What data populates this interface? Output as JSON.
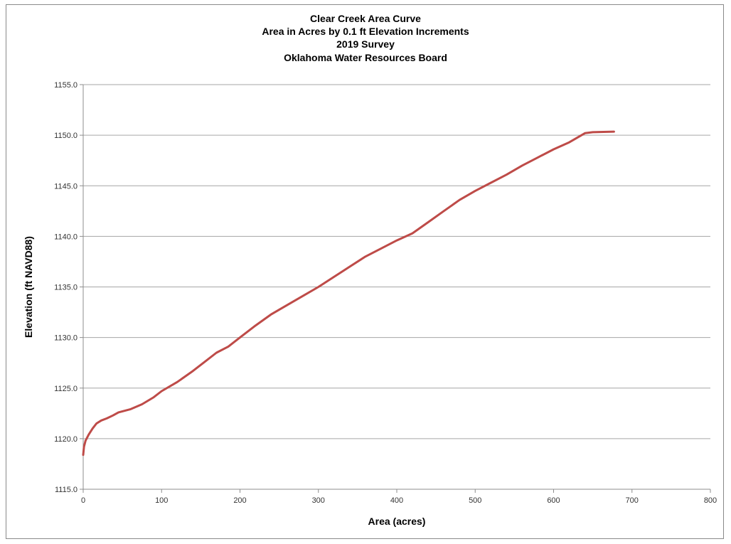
{
  "chart_data": {
    "type": "line",
    "title": [
      "Clear Creek Area Curve",
      "Area in Acres by 0.1 ft Elevation Increments",
      "2019 Survey",
      "Oklahoma Water Resources Board"
    ],
    "xlabel": "Area (acres)",
    "ylabel": "Elevation (ft NAVD88)",
    "xlim": [
      0,
      800
    ],
    "ylim": [
      1115.0,
      1155.0
    ],
    "x_ticks": [
      "0",
      "100",
      "200",
      "300",
      "400",
      "500",
      "600",
      "700",
      "800"
    ],
    "y_ticks": [
      "1115.0",
      "1120.0",
      "1125.0",
      "1130.0",
      "1135.0",
      "1140.0",
      "1145.0",
      "1150.0",
      "1155.0"
    ],
    "grid": "horizontal",
    "legend": "none",
    "series": [
      {
        "color": "#be4b48",
        "points": [
          [
            0,
            1118.4
          ],
          [
            1,
            1119.2
          ],
          [
            3,
            1119.8
          ],
          [
            7,
            1120.4
          ],
          [
            12,
            1121.0
          ],
          [
            17,
            1121.5
          ],
          [
            23,
            1121.8
          ],
          [
            30,
            1122.0
          ],
          [
            38,
            1122.3
          ],
          [
            45,
            1122.6
          ],
          [
            60,
            1122.9
          ],
          [
            75,
            1123.4
          ],
          [
            90,
            1124.1
          ],
          [
            100,
            1124.7
          ],
          [
            120,
            1125.6
          ],
          [
            140,
            1126.7
          ],
          [
            155,
            1127.6
          ],
          [
            170,
            1128.5
          ],
          [
            185,
            1129.1
          ],
          [
            200,
            1130.0
          ],
          [
            220,
            1131.2
          ],
          [
            240,
            1132.3
          ],
          [
            260,
            1133.2
          ],
          [
            280,
            1134.1
          ],
          [
            300,
            1135.0
          ],
          [
            320,
            1136.0
          ],
          [
            340,
            1137.0
          ],
          [
            360,
            1138.0
          ],
          [
            380,
            1138.8
          ],
          [
            400,
            1139.6
          ],
          [
            420,
            1140.3
          ],
          [
            440,
            1141.4
          ],
          [
            460,
            1142.5
          ],
          [
            480,
            1143.6
          ],
          [
            500,
            1144.5
          ],
          [
            520,
            1145.3
          ],
          [
            540,
            1146.1
          ],
          [
            560,
            1147.0
          ],
          [
            580,
            1147.8
          ],
          [
            600,
            1148.6
          ],
          [
            620,
            1149.3
          ],
          [
            640,
            1150.2
          ],
          [
            650,
            1150.3
          ],
          [
            677,
            1150.35
          ]
        ]
      }
    ]
  }
}
